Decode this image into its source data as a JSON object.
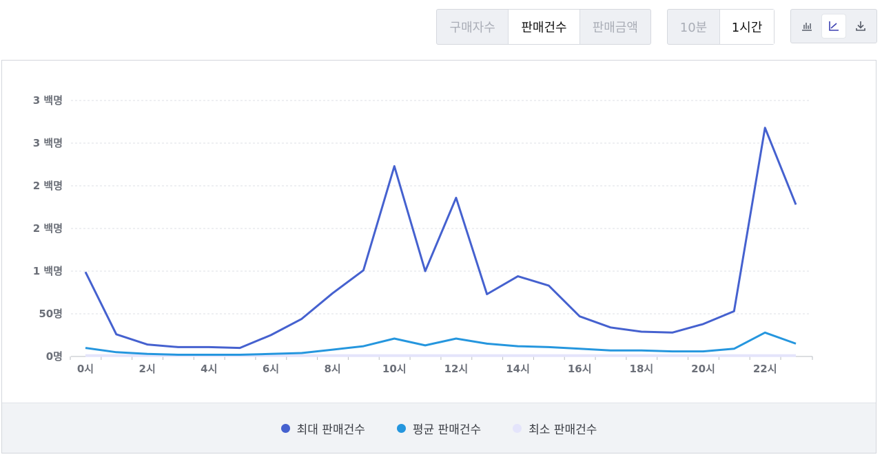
{
  "metric_toggle": {
    "options": [
      "구매자수",
      "판매건수",
      "판매금액"
    ],
    "active": "판매건수"
  },
  "interval_toggle": {
    "options": [
      "10분",
      "1시간"
    ],
    "active": "1시간"
  },
  "view_buttons": {
    "bar_icon": "bar-chart-icon",
    "line_icon": "line-chart-icon",
    "download_icon": "download-icon"
  },
  "colors": {
    "max": "#4561cf",
    "avg": "#2596de",
    "min": "#e4e4fb"
  },
  "chart_data": {
    "type": "line",
    "x": [
      "0시",
      "1시",
      "2시",
      "3시",
      "4시",
      "5시",
      "6시",
      "7시",
      "8시",
      "9시",
      "10시",
      "11시",
      "12시",
      "13시",
      "14시",
      "15시",
      "16시",
      "17시",
      "18시",
      "19시",
      "20시",
      "21시",
      "22시",
      "23시"
    ],
    "x_tick_labels": [
      "0시",
      "2시",
      "4시",
      "6시",
      "8시",
      "10시",
      "12시",
      "14시",
      "16시",
      "18시",
      "20시",
      "22시"
    ],
    "y_tick_labels": [
      "0명",
      "50명",
      "1 백명",
      "2 백명",
      "2 백명",
      "3 백명",
      "3 백명"
    ],
    "ylim": [
      0,
      300
    ],
    "grid": true,
    "legend_position": "bottom",
    "series": [
      {
        "name": "최대 판매건수",
        "color": "#4561cf",
        "values": [
          99,
          26,
          14,
          11,
          11,
          10,
          25,
          44,
          74,
          101,
          223,
          100,
          186,
          73,
          94,
          83,
          47,
          34,
          29,
          28,
          38,
          53,
          268,
          178
        ]
      },
      {
        "name": "평균 판매건수",
        "color": "#2596de",
        "values": [
          10,
          5,
          3,
          2,
          2,
          2,
          3,
          4,
          8,
          12,
          21,
          13,
          21,
          15,
          12,
          11,
          9,
          7,
          7,
          6,
          6,
          9,
          28,
          15
        ]
      },
      {
        "name": "최소 판매건수",
        "color": "#e4e4fb",
        "values": [
          1,
          1,
          1,
          1,
          1,
          1,
          1,
          1,
          1,
          1,
          1,
          1,
          1,
          1,
          1,
          1,
          1,
          1,
          1,
          1,
          1,
          1,
          1,
          1
        ]
      }
    ]
  }
}
